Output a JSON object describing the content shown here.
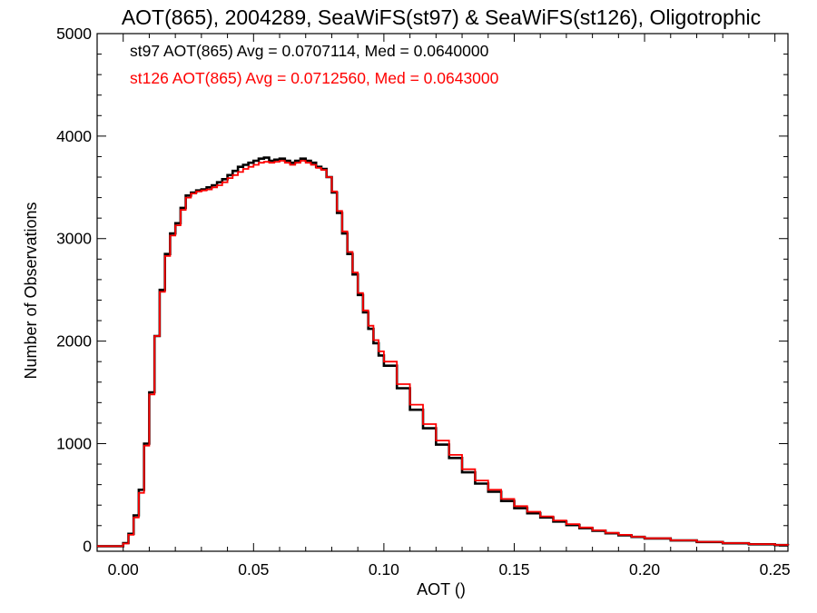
{
  "chart_data": {
    "type": "line",
    "title": "AOT(865), 2004289, SeaWiFS(st97) & SeaWiFS(st126), Oligotrophic",
    "xlabel": "AOT ()",
    "ylabel": "Number of Observations",
    "xlim": [
      -0.01,
      0.255
    ],
    "ylim": [
      -50,
      5000
    ],
    "xticks": [
      0.0,
      0.05,
      0.1,
      0.15,
      0.2,
      0.25
    ],
    "xtick_labels": [
      "0.00",
      "0.05",
      "0.10",
      "0.15",
      "0.20",
      "0.25"
    ],
    "yticks": [
      0,
      1000,
      2000,
      3000,
      4000,
      5000
    ],
    "ytick_labels": [
      "0",
      "1000",
      "2000",
      "3000",
      "4000",
      "5000"
    ],
    "grid": false,
    "colors": {
      "st97": "#000000",
      "st126": "#ff0000"
    },
    "annotations": [
      "st97 AOT(865) Avg = 0.0707114, Med = 0.0640000",
      "st126 AOT(865) Avg = 0.0712560, Med = 0.0643000"
    ],
    "x": [
      -0.01,
      -0.005,
      0.0,
      0.002,
      0.004,
      0.006,
      0.008,
      0.01,
      0.012,
      0.014,
      0.016,
      0.018,
      0.02,
      0.022,
      0.024,
      0.026,
      0.028,
      0.03,
      0.032,
      0.034,
      0.036,
      0.038,
      0.04,
      0.042,
      0.044,
      0.046,
      0.048,
      0.05,
      0.052,
      0.054,
      0.056,
      0.058,
      0.06,
      0.062,
      0.064,
      0.066,
      0.068,
      0.07,
      0.072,
      0.074,
      0.076,
      0.078,
      0.08,
      0.082,
      0.084,
      0.086,
      0.088,
      0.09,
      0.092,
      0.094,
      0.096,
      0.098,
      0.1,
      0.105,
      0.11,
      0.115,
      0.12,
      0.125,
      0.13,
      0.135,
      0.14,
      0.145,
      0.15,
      0.155,
      0.16,
      0.165,
      0.17,
      0.175,
      0.18,
      0.185,
      0.19,
      0.195,
      0.2,
      0.21,
      0.22,
      0.23,
      0.24,
      0.25,
      0.255
    ],
    "series": [
      {
        "values": [
          0,
          0,
          30,
          120,
          300,
          550,
          1000,
          1500,
          2050,
          2500,
          2850,
          3050,
          3150,
          3300,
          3420,
          3450,
          3470,
          3480,
          3500,
          3520,
          3550,
          3580,
          3620,
          3660,
          3700,
          3720,
          3740,
          3760,
          3780,
          3790,
          3760,
          3770,
          3780,
          3760,
          3740,
          3760,
          3780,
          3760,
          3740,
          3700,
          3680,
          3600,
          3450,
          3250,
          3050,
          2850,
          2650,
          2450,
          2280,
          2120,
          1980,
          1860,
          1760,
          1540,
          1330,
          1150,
          990,
          860,
          720,
          610,
          530,
          440,
          370,
          320,
          280,
          240,
          205,
          175,
          150,
          125,
          105,
          90,
          75,
          55,
          40,
          28,
          18,
          10,
          8
        ]
      },
      {
        "values": [
          0,
          0,
          25,
          110,
          280,
          520,
          980,
          1480,
          2050,
          2480,
          2830,
          3030,
          3130,
          3280,
          3400,
          3440,
          3460,
          3470,
          3480,
          3500,
          3520,
          3550,
          3590,
          3620,
          3650,
          3680,
          3700,
          3720,
          3740,
          3750,
          3740,
          3750,
          3760,
          3740,
          3720,
          3740,
          3760,
          3740,
          3720,
          3690,
          3670,
          3600,
          3460,
          3270,
          3070,
          2870,
          2670,
          2470,
          2300,
          2150,
          2010,
          1900,
          1800,
          1580,
          1380,
          1190,
          1030,
          890,
          750,
          640,
          550,
          460,
          390,
          335,
          290,
          250,
          215,
          182,
          155,
          130,
          110,
          92,
          77,
          57,
          42,
          30,
          20,
          12,
          10
        ]
      }
    ]
  }
}
